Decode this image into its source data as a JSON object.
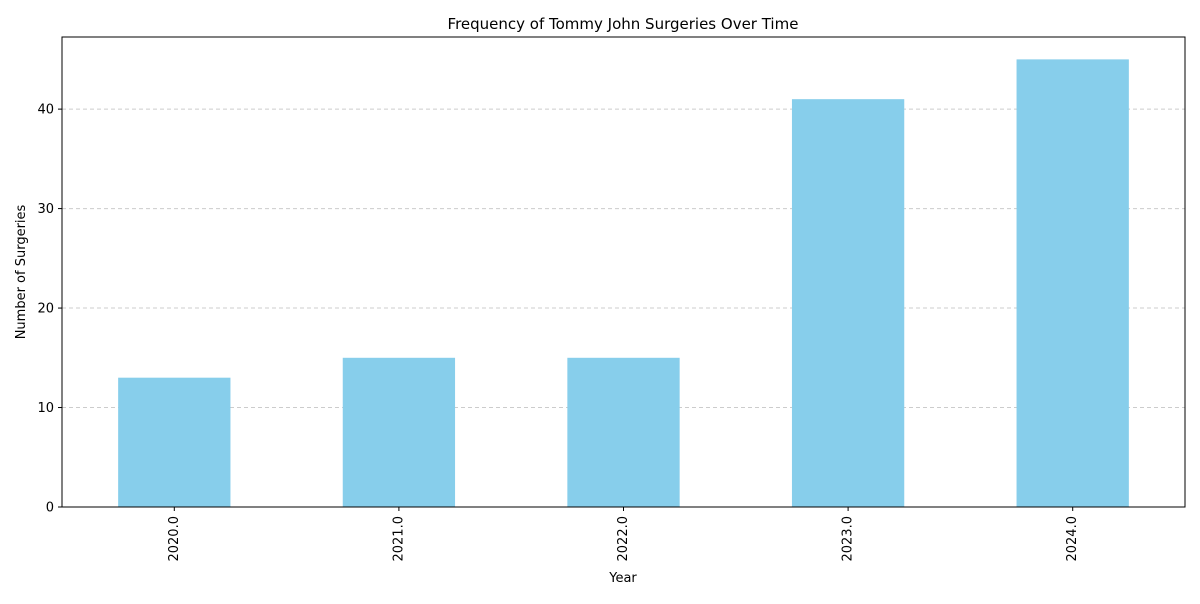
{
  "chart_data": {
    "type": "bar",
    "title": "Frequency of Tommy John Surgeries Over Time",
    "xlabel": "Year",
    "ylabel": "Number of Surgeries",
    "categories": [
      "2020.0",
      "2021.0",
      "2022.0",
      "2023.0",
      "2024.0"
    ],
    "values": [
      13,
      15,
      15,
      41,
      45
    ],
    "ylim": [
      0,
      47.25
    ],
    "yticks": [
      0,
      10,
      20,
      30,
      40
    ],
    "ytick_labels": [
      "0",
      "10",
      "20",
      "30",
      "40"
    ],
    "grid": "horizontal dashed",
    "bar_color": "#87CEEB",
    "grid_color": "#cccccc",
    "tick_rotation": "vertical"
  }
}
